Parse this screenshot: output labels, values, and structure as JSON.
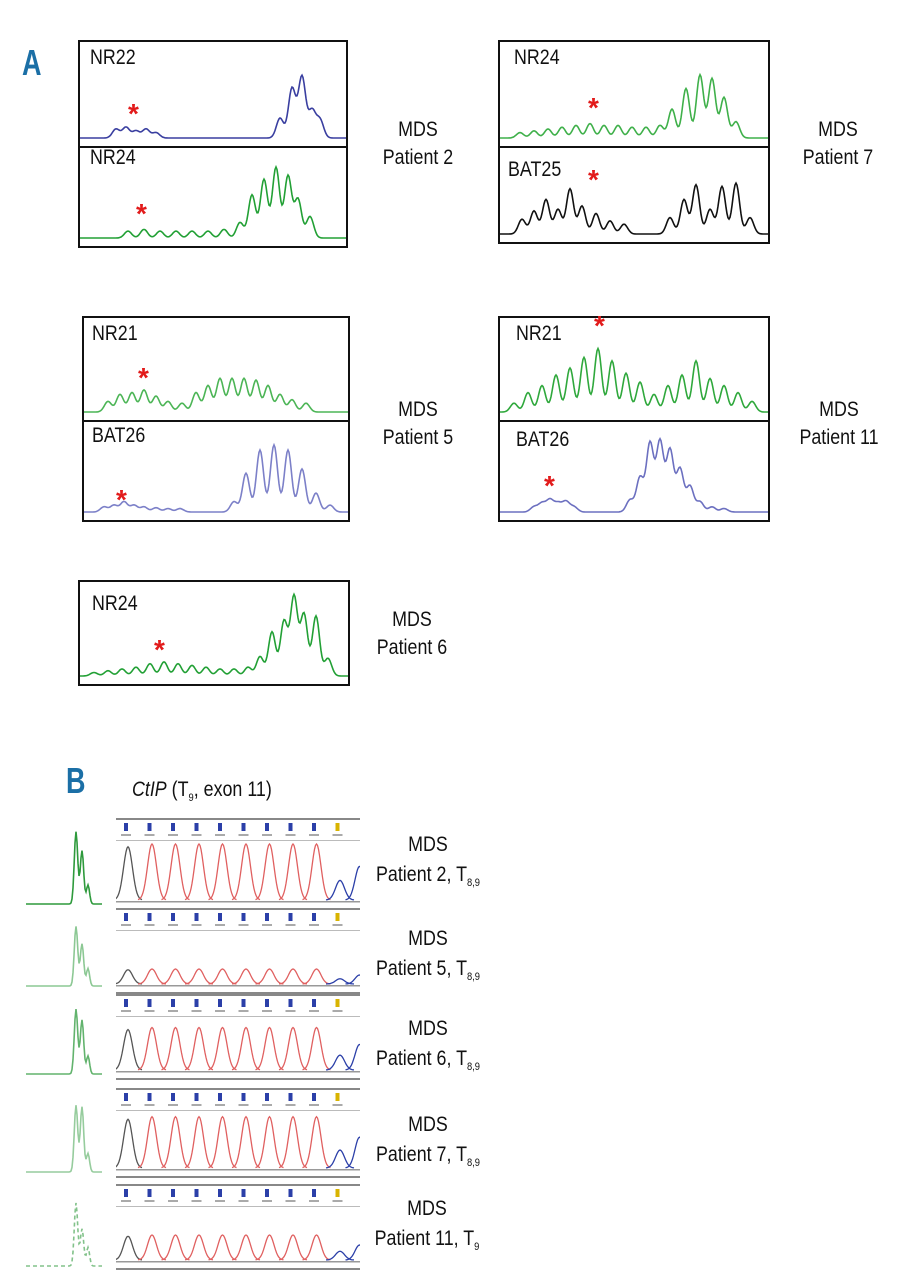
{
  "panel_a": {
    "letter": "A",
    "figures": [
      {
        "caption": {
          "line1": "MDS",
          "line2": "Patient 2"
        },
        "traces": [
          {
            "marker": "NR22",
            "color": "#3a3fa0"
          },
          {
            "marker": "NR24",
            "color": "#22a035"
          }
        ]
      },
      {
        "caption": {
          "line1": "MDS",
          "line2": "Patient 7"
        },
        "traces": [
          {
            "marker": "NR24",
            "color": "#3fb04a"
          },
          {
            "marker": "BAT25",
            "color": "#111111"
          }
        ]
      },
      {
        "caption": {
          "line1": "MDS",
          "line2": "Patient 5"
        },
        "traces": [
          {
            "marker": "NR21",
            "color": "#4cb556"
          },
          {
            "marker": "BAT26",
            "color": "#7c80c8"
          }
        ]
      },
      {
        "caption": {
          "line1": "MDS",
          "line2": "Patient 11"
        },
        "traces": [
          {
            "marker": "NR21",
            "color": "#2fa83c"
          },
          {
            "marker": "BAT26",
            "color": "#6c70c0"
          }
        ]
      },
      {
        "caption": {
          "line1": "MDS",
          "line2": "Patient 6"
        },
        "traces": [
          {
            "marker": "NR24",
            "color": "#22a035"
          }
        ]
      }
    ],
    "star_symbol": "*"
  },
  "panel_b": {
    "letter": "B",
    "title": {
      "gene": "CtIP",
      "rest_open": " (T",
      "sub": "9",
      "rest_close": ", exon 11)"
    },
    "rows": [
      {
        "line1": "MDS",
        "line2": "Patient 2, T",
        "sub": "8,9"
      },
      {
        "line1": "MDS",
        "line2": "Patient 5, T",
        "sub": "8,9"
      },
      {
        "line1": "MDS",
        "line2": "Patient 6, T",
        "sub": "8,9"
      },
      {
        "line1": "MDS",
        "line2": "Patient 7, T",
        "sub": "8,9"
      },
      {
        "line1": "MDS",
        "line2": "Patient 11, T",
        "sub": "9"
      }
    ],
    "colors": {
      "sequence_red": "#e06060",
      "sequence_grey": "#555555",
      "sequence_blue": "#2b3fa8",
      "fragment_green": "#2e9a3c"
    }
  }
}
